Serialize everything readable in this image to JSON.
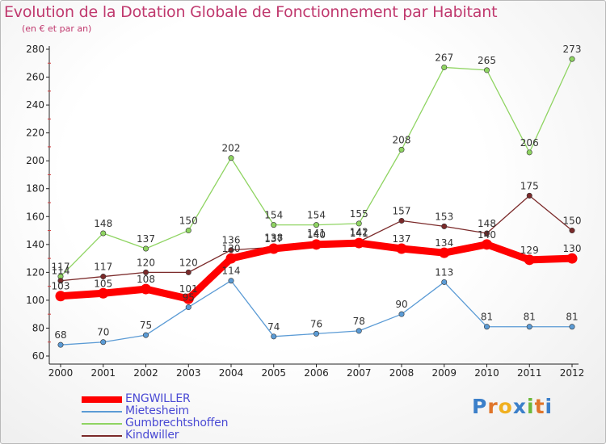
{
  "title": "Evolution de la Dotation Globale de Fonctionnement par Habitant",
  "subtitle": "(en € et par an)",
  "logo": {
    "letters": [
      "P",
      "r",
      "o",
      "x",
      "i",
      "t",
      "i"
    ],
    "colors": [
      "#3b7fc9",
      "#e0752a",
      "#f0b020",
      "#3b7fc9",
      "#6cb83a",
      "#e0752a",
      "#3b7fc9"
    ]
  },
  "chart_data": {
    "type": "line",
    "title": "Evolution de la Dotation Globale de Fonctionnement par Habitant",
    "subtitle": "(en € et par an)",
    "x": [
      "2000",
      "2001",
      "2002",
      "2003",
      "2004",
      "2005",
      "2006",
      "2007",
      "2008",
      "2009",
      "2010",
      "2011",
      "2012"
    ],
    "yticks": [
      60,
      80,
      100,
      120,
      140,
      160,
      180,
      200,
      220,
      240,
      260,
      280
    ],
    "ylim": [
      60,
      280
    ],
    "grid": false,
    "legend_position": "bottom-left",
    "series": [
      {
        "name": "ENGWILLER",
        "color": "#ff0000",
        "values": [
          103,
          105,
          108,
          101,
          130,
          137,
          140,
          141,
          137,
          134,
          140,
          129,
          130
        ],
        "labels": [
          "103",
          "105",
          "108",
          "101",
          "130",
          "137",
          "140",
          "141",
          "137",
          "134",
          "140",
          "129",
          "130"
        ],
        "bold": true
      },
      {
        "name": "Mietesheim",
        "color": "#5b9bd5",
        "values": [
          68,
          70,
          75,
          95,
          114,
          74,
          76,
          78,
          90,
          113,
          81,
          81,
          81
        ],
        "labels": [
          "68",
          "70",
          "75",
          "95",
          "114",
          "74",
          "76",
          "78",
          "90",
          "113",
          "81",
          "81",
          "81"
        ]
      },
      {
        "name": "Gumbrechtshoffen",
        "color": "#8fd462",
        "values": [
          117,
          148,
          137,
          150,
          202,
          154,
          154,
          155,
          208,
          267,
          265,
          206,
          273
        ],
        "labels": [
          "117",
          "148",
          "137",
          "150",
          "202",
          "154",
          "154",
          "155",
          "208",
          "267",
          "265",
          "206",
          "273"
        ]
      },
      {
        "name": "Kindwiller",
        "color": "#7b2a2a",
        "values": [
          114,
          117,
          120,
          120,
          136,
          138,
          141,
          142,
          157,
          153,
          148,
          175,
          150
        ],
        "labels": [
          "114",
          "117",
          "120",
          "120",
          "136",
          "138",
          "141",
          "142",
          "157",
          "153",
          "148",
          "175",
          "150"
        ]
      }
    ]
  }
}
